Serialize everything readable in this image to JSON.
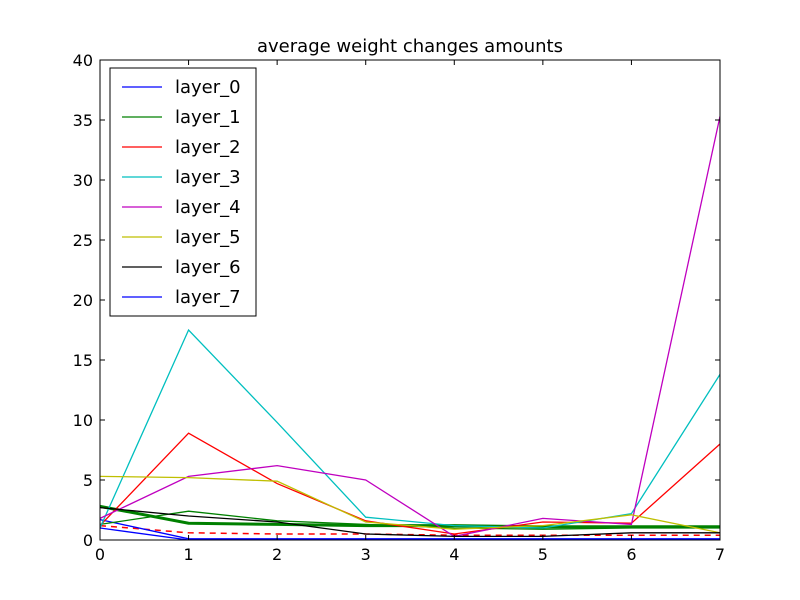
{
  "chart_data": {
    "type": "line",
    "title": "average weight changes amounts",
    "xlabel": "",
    "ylabel": "",
    "xlim": [
      0,
      7
    ],
    "ylim": [
      0,
      40
    ],
    "x_ticks": [
      0,
      1,
      2,
      3,
      4,
      5,
      6,
      7
    ],
    "y_ticks": [
      0,
      5,
      10,
      15,
      20,
      25,
      30,
      35,
      40
    ],
    "grid": false,
    "legend_position": "top-left",
    "x": [
      0,
      1,
      2,
      3,
      4,
      5,
      6,
      7
    ],
    "series": [
      {
        "name": "layer_0",
        "color": "#0000ff",
        "values": [
          1.7,
          0.1,
          0.1,
          0.1,
          0.1,
          0.1,
          0.1,
          0.1
        ]
      },
      {
        "name": "layer_1",
        "color": "#008000",
        "values": [
          1.3,
          2.4,
          1.6,
          1.3,
          1.0,
          0.9,
          1.0,
          1.0
        ]
      },
      {
        "name": "layer_2",
        "color": "#ff0000",
        "values": [
          1.2,
          8.9,
          4.7,
          1.6,
          0.5,
          1.5,
          1.4,
          8.0
        ]
      },
      {
        "name": "layer_3",
        "color": "#00bfbf",
        "values": [
          1.0,
          17.5,
          9.8,
          1.9,
          1.2,
          1.0,
          2.2,
          13.8
        ]
      },
      {
        "name": "layer_4",
        "color": "#bf00bf",
        "values": [
          1.8,
          5.3,
          6.2,
          5.0,
          0.3,
          1.8,
          1.3,
          35.3
        ]
      },
      {
        "name": "layer_5",
        "color": "#bfbf00",
        "values": [
          5.3,
          5.2,
          4.9,
          1.5,
          0.9,
          1.2,
          2.1,
          0.6
        ]
      },
      {
        "name": "layer_6",
        "color": "#000000",
        "values": [
          2.7,
          2.0,
          1.5,
          0.5,
          0.3,
          0.3,
          0.6,
          0.6
        ]
      },
      {
        "name": "layer_7",
        "color": "#0000ff",
        "values": [
          1.0,
          0.0,
          0.0,
          0.0,
          0.0,
          0.0,
          0.0,
          0.0
        ]
      }
    ],
    "extra_lines": [
      {
        "color": "#008000",
        "style": "solid-thick",
        "values": [
          2.8,
          1.4,
          1.3,
          1.2,
          1.2,
          1.1,
          1.1,
          1.1
        ]
      },
      {
        "color": "#ff0000",
        "style": "dashed",
        "values": [
          1.2,
          0.6,
          0.5,
          0.5,
          0.4,
          0.4,
          0.4,
          0.4
        ]
      }
    ]
  }
}
